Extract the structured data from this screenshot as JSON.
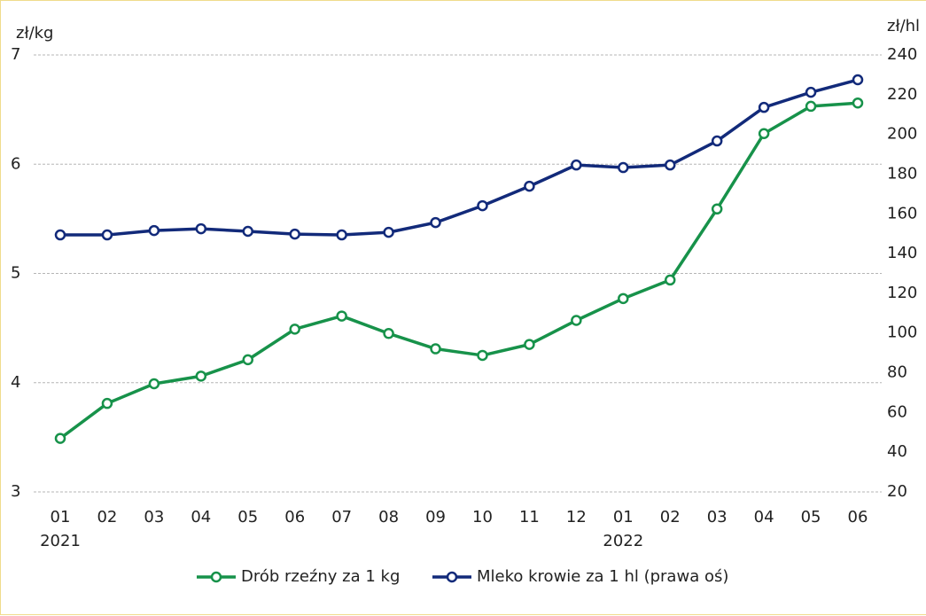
{
  "chart_data": {
    "type": "line",
    "ylabel": "zł/kg",
    "y2label": "zł/hl",
    "categories": [
      "01",
      "02",
      "03",
      "04",
      "05",
      "06",
      "07",
      "08",
      "09",
      "10",
      "11",
      "12",
      "01",
      "02",
      "03",
      "04",
      "05",
      "06"
    ],
    "year_labels": [
      "2021",
      null,
      null,
      null,
      null,
      null,
      null,
      null,
      null,
      null,
      null,
      null,
      "2022",
      null,
      null,
      null,
      null,
      null
    ],
    "series": [
      {
        "name": "Drób rzeźny za 1 kg",
        "color": "#17924a",
        "values": [
          3.49,
          3.81,
          3.99,
          4.06,
          4.21,
          4.49,
          4.61,
          4.45,
          4.31,
          4.25,
          4.35,
          4.57,
          4.77,
          4.94,
          5.59,
          6.28,
          6.53,
          6.56
        ]
      },
      {
        "name": "Mleko krowie za 1 hl (prawa oś)",
        "color": "#122a7a",
        "axis": "y2",
        "values": [
          149.4,
          149.4,
          151.6,
          152.5,
          151.2,
          149.8,
          149.4,
          150.7,
          155.6,
          164.1,
          173.9,
          184.6,
          183.3,
          184.6,
          196.7,
          213.6,
          221.2,
          227.5
        ]
      }
    ],
    "ylim": [
      3,
      7
    ],
    "yticks": [
      3,
      4,
      5,
      6,
      7
    ],
    "y2lim": [
      20,
      240
    ],
    "y2ticks": [
      20,
      40,
      60,
      80,
      100,
      120,
      140,
      160,
      180,
      200,
      220,
      240
    ],
    "grid": true,
    "legend": "bottom"
  }
}
